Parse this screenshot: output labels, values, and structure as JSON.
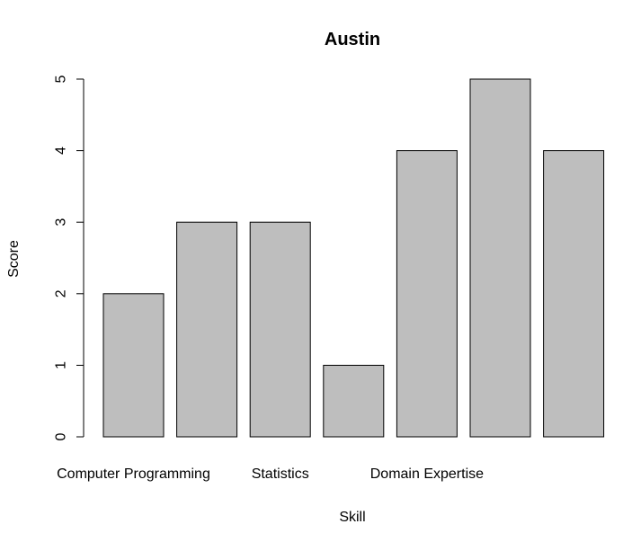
{
  "chart_data": {
    "type": "bar",
    "title": "Austin",
    "xlabel": "Skill",
    "ylabel": "Score",
    "categories": [
      "Computer Programming",
      "",
      "Statistics",
      "",
      "Domain Expertise",
      "",
      ""
    ],
    "values": [
      2,
      3,
      3,
      1,
      4,
      5,
      4
    ],
    "ylim": [
      0,
      5
    ],
    "yticks": [
      "0",
      "1",
      "2",
      "3",
      "4",
      "5"
    ],
    "grid": false,
    "bar_color": "#bebebe"
  }
}
